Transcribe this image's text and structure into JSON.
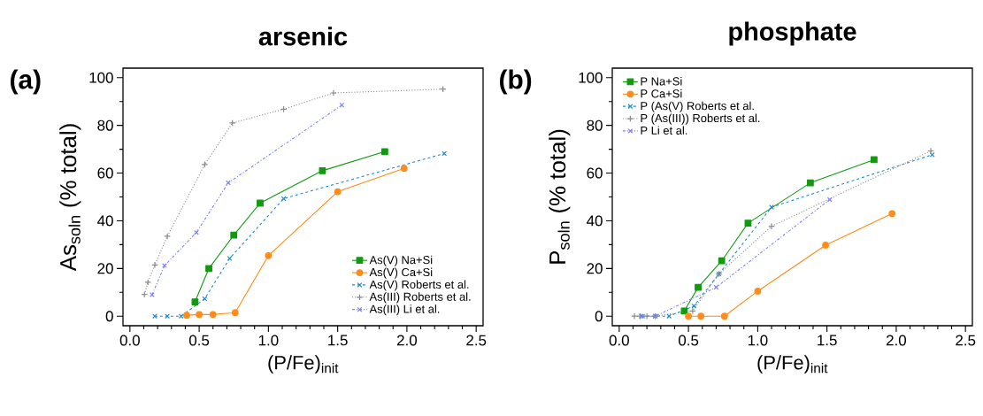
{
  "chart_data": [
    {
      "type": "line",
      "title": "arsenic",
      "xlabel": "(P/Fe)$_{init}$",
      "ylabel": "As$_{soln}$ (% total)",
      "annotations": [
        "(a)"
      ],
      "xlim": [
        -0.05,
        2.55
      ],
      "ylim": [
        -4,
        104
      ],
      "xticks": [
        {
          "value": 0,
          "label": "0.0"
        },
        {
          "value": 0.5,
          "label": "0.5"
        },
        {
          "value": 1,
          "label": "1.0"
        },
        {
          "value": 1.5,
          "label": "1.5"
        },
        {
          "value": 2,
          "label": "2.0"
        },
        {
          "value": 2.5,
          "label": "2.5"
        }
      ],
      "yticks": [
        0,
        20,
        40,
        60,
        80,
        100
      ],
      "legend": "bottom right",
      "series": [
        {
          "name": "As(V) Na+Si",
          "color": "#119911",
          "marker": "square",
          "line_style": "solid",
          "x": [
            0.47,
            0.57,
            0.75,
            0.94,
            1.39,
            1.84
          ],
          "values": [
            6,
            20,
            34,
            47.4,
            61,
            69
          ]
        },
        {
          "name": "As(V) Ca+Si",
          "color": "#ff8c1a",
          "marker": "circle",
          "line_style": "solid",
          "x": [
            0.41,
            0.5,
            0.6,
            0.76,
            1.0,
            1.5,
            1.98
          ],
          "values": [
            0.4,
            0.7,
            0.7,
            1.5,
            25.4,
            52.2,
            62
          ]
        },
        {
          "name": "As(V) Roberts et al.",
          "color": "#1f8ccc",
          "marker": "cross",
          "line_style": "dashed",
          "x": [
            0.18,
            0.27,
            0.37,
            0.54,
            0.72,
            1.11,
            2.27
          ],
          "values": [
            0,
            0,
            0,
            7.3,
            24.2,
            49.3,
            68.2
          ]
        },
        {
          "name": "As(III) Roberts et al.",
          "color": "#8c8c8c",
          "marker": "plus",
          "line_style": "dotted",
          "x": [
            0.105,
            0.13,
            0.18,
            0.27,
            0.54,
            0.74,
            1.11,
            1.47,
            2.26
          ],
          "values": [
            9.1,
            14.2,
            21.5,
            33.5,
            63.6,
            81,
            86.8,
            93.6,
            95.2
          ]
        },
        {
          "name": "As(III) Li et al.",
          "color": "#8080ff",
          "marker": "cross",
          "line_style": "dashdot",
          "x": [
            0.16,
            0.25,
            0.48,
            0.71,
            1.53
          ],
          "values": [
            9,
            21.2,
            35.1,
            55.9,
            88.5
          ]
        }
      ]
    },
    {
      "type": "line",
      "title": "phosphate",
      "xlabel": "(P/Fe)$_{init}$",
      "ylabel": "P$_{soln}$ (% total)",
      "annotations": [
        "(b)"
      ],
      "xlim": [
        -0.05,
        2.55
      ],
      "ylim": [
        -4,
        104
      ],
      "xticks": [
        {
          "value": 0,
          "label": "0.0"
        },
        {
          "value": 0.5,
          "label": "0.5"
        },
        {
          "value": 1,
          "label": "1.0"
        },
        {
          "value": 1.5,
          "label": "1.5"
        },
        {
          "value": 2,
          "label": "2.0"
        },
        {
          "value": 2.5,
          "label": "2.5"
        }
      ],
      "yticks": [
        0,
        20,
        40,
        60,
        80,
        100
      ],
      "legend": "top left",
      "series": [
        {
          "name": "P Na+Si",
          "color": "#119911",
          "marker": "square",
          "line_style": "solid",
          "x": [
            0.47,
            0.57,
            0.74,
            0.93,
            1.38,
            1.84
          ],
          "values": [
            2.2,
            12.1,
            23.2,
            39,
            55.9,
            65.6
          ]
        },
        {
          "name": "P Ca+Si",
          "color": "#ff8c1a",
          "marker": "circle",
          "line_style": "solid",
          "x": [
            0.5,
            0.59,
            0.76,
            1.0,
            1.49,
            1.97
          ],
          "values": [
            0,
            0,
            0,
            10.5,
            29.8,
            43
          ]
        },
        {
          "name": "P (As(V) Roberts et al.",
          "color": "#1f8ccc",
          "marker": "cross",
          "line_style": "dashed",
          "x": [
            0.16,
            0.26,
            0.36,
            0.54,
            0.72,
            1.1,
            2.26
          ],
          "values": [
            0,
            0,
            0,
            4.3,
            17.7,
            45.7,
            67.7
          ]
        },
        {
          "name": "P (As(III)) Roberts et al.",
          "color": "#8c8c8c",
          "marker": "plus",
          "line_style": "dotted",
          "x": [
            0.11,
            0.15,
            0.2,
            0.26,
            0.53,
            0.72,
            1.1,
            2.25
          ],
          "values": [
            0,
            0,
            0,
            0,
            2.2,
            17.7,
            37.7,
            69.3
          ]
        },
        {
          "name": "P Li et al.",
          "color": "#8080ff",
          "marker": "cross",
          "line_style": "dashdot",
          "x": [
            0.17,
            0.26,
            0.7,
            1.52
          ],
          "values": [
            0,
            0,
            12.1,
            48.9
          ]
        }
      ]
    }
  ]
}
